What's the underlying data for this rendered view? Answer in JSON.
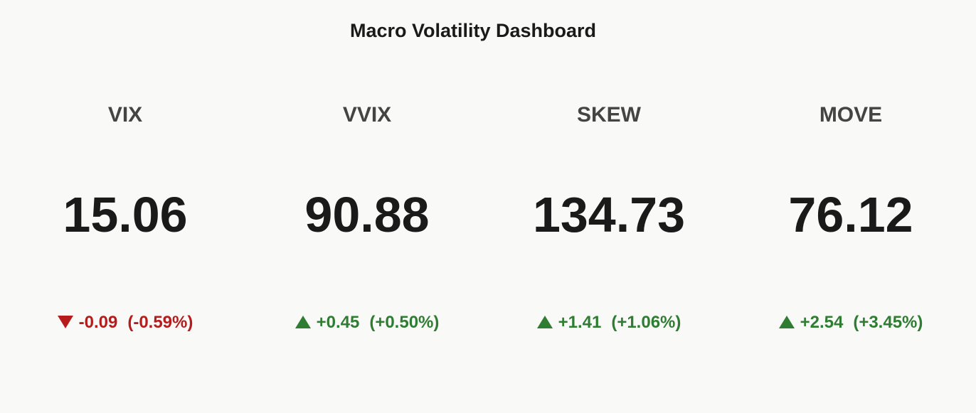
{
  "header": {
    "title": "Macro Volatility Dashboard"
  },
  "indicators": [
    {
      "name": "VIX",
      "value": "15.06",
      "change": "-0.09",
      "change_pct": "(-0.59%)"
    },
    {
      "name": "VVIX",
      "value": "90.88",
      "change": "+0.45",
      "change_pct": "(+0.50%)"
    },
    {
      "name": "SKEW",
      "value": "134.73",
      "change": "+1.41",
      "change_pct": "(+1.06%)"
    },
    {
      "name": "MOVE",
      "value": "76.12",
      "change": "+2.54",
      "change_pct": "(+3.45%)"
    }
  ]
}
